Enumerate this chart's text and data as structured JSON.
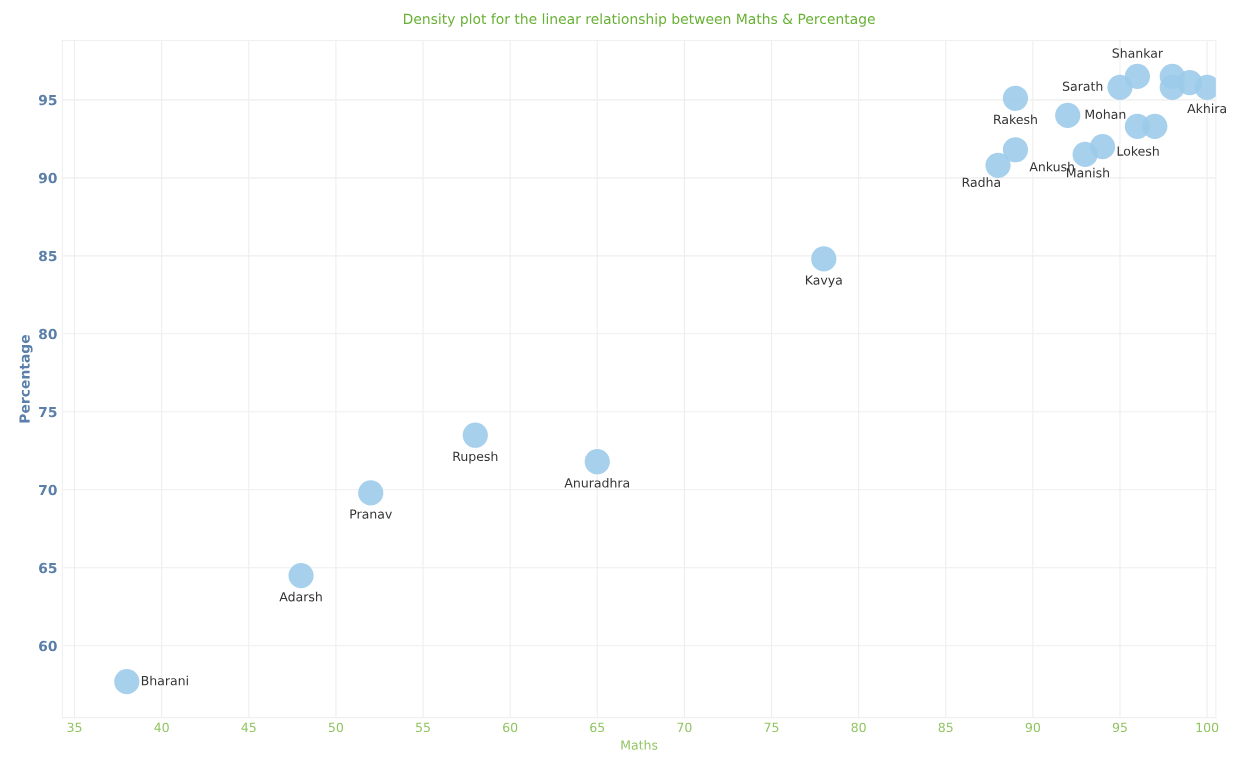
{
  "chart_data": {
    "type": "scatter",
    "title": "Density plot for the linear relationship between Maths & Percentage",
    "xlabel": "Maths",
    "ylabel": "Percentage",
    "x": [
      38,
      48,
      52,
      58,
      65,
      78,
      88,
      89,
      89,
      92,
      93,
      94,
      96,
      97,
      95,
      96,
      98,
      98,
      99,
      100
    ],
    "series": [
      {
        "color": "#9ccbea",
        "values": [
          57.7,
          64.5,
          69.8,
          73.5,
          71.8,
          84.8,
          90.8,
          91.8,
          95.1,
          94.0,
          91.5,
          92.0,
          93.3,
          93.3,
          95.8,
          96.5,
          96.5,
          95.8,
          96.1,
          95.8
        ]
      }
    ],
    "annotations": [
      {
        "text": "Bharani",
        "x": 38,
        "y": 57.7
      },
      {
        "text": "Adarsh",
        "x": 48,
        "y": 64.5
      },
      {
        "text": "Pranav",
        "x": 52,
        "y": 69.8
      },
      {
        "text": "Rupesh",
        "x": 58,
        "y": 73.5
      },
      {
        "text": "Anuradhra",
        "x": 65,
        "y": 71.8
      },
      {
        "text": "Kavya",
        "x": 78,
        "y": 84.8
      },
      {
        "text": "Radha",
        "x": 88,
        "y": 90.8
      },
      {
        "text": "Ankush",
        "x": 89,
        "y": 91.8
      },
      {
        "text": "Rakesh",
        "x": 89,
        "y": 95.1
      },
      {
        "text": "Mohan",
        "x": 92,
        "y": 94.0
      },
      {
        "text": "Manish",
        "x": 93,
        "y": 91.5
      },
      {
        "text": "Lokesh",
        "x": 94,
        "y": 92.0
      },
      {
        "text": "Sarath",
        "x": 95,
        "y": 95.8
      },
      {
        "text": "Shankar",
        "x": 96,
        "y": 96.5
      },
      {
        "text": "Akhira",
        "x": 100,
        "y": 95.8
      }
    ],
    "xlim": [
      34.3,
      100.5
    ],
    "ylim": [
      55.4,
      98.8
    ],
    "xticks": [
      35,
      40,
      45,
      50,
      55,
      60,
      65,
      70,
      75,
      80,
      85,
      90,
      95,
      100
    ],
    "yticks": [
      60,
      65,
      70,
      75,
      80,
      85,
      90,
      95
    ],
    "grid": true,
    "marker": "circle"
  }
}
